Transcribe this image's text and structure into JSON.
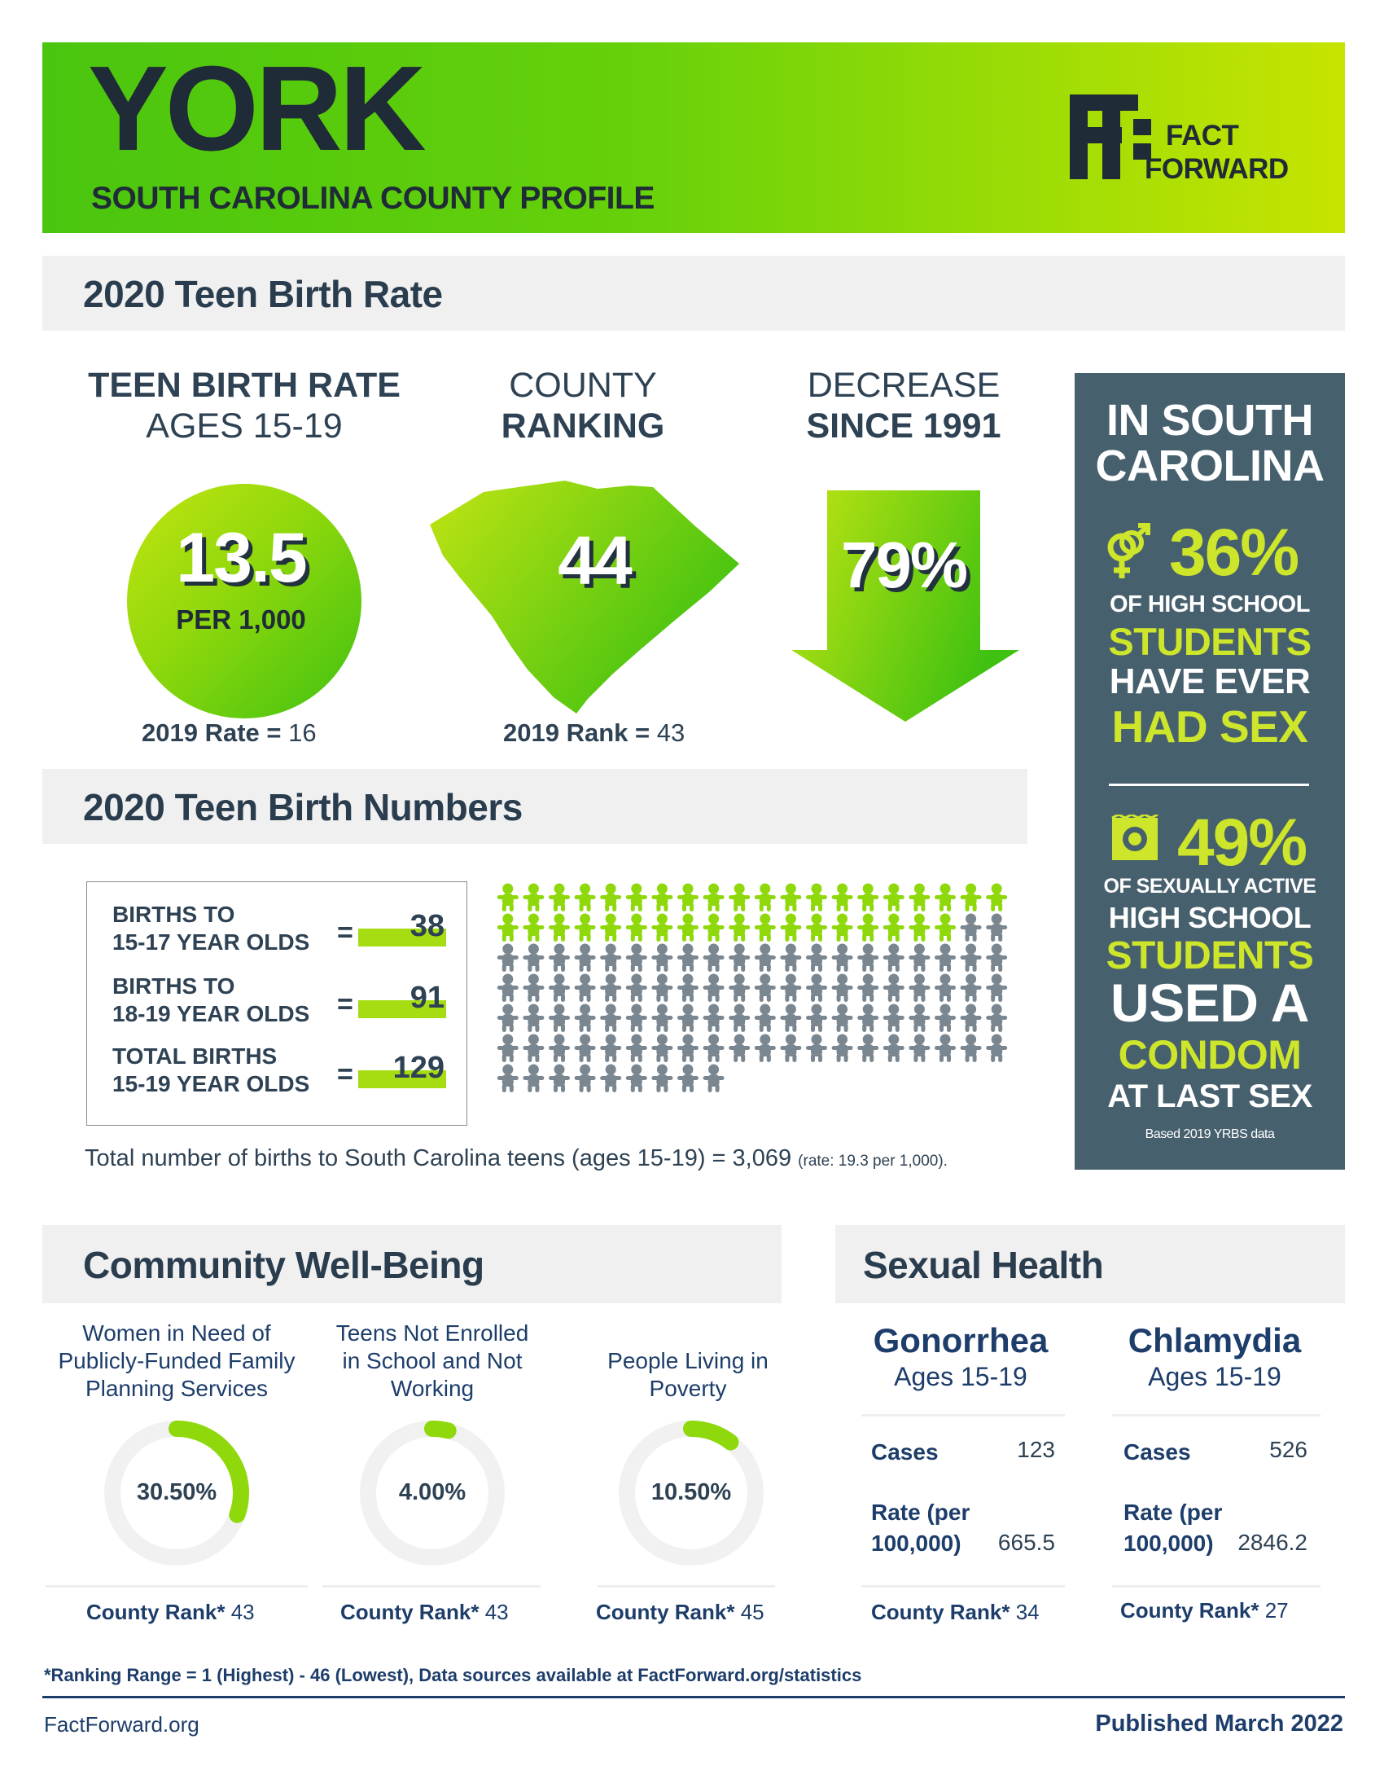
{
  "header": {
    "county": "YORK",
    "subtitle": "SOUTH CAROLINA COUNTY PROFILE",
    "logo_line1": "FACT",
    "logo_line2": "FORWARD"
  },
  "teen_birth_rate": {
    "section_title": "2020 Teen Birth Rate",
    "rate": {
      "heading_line1": "TEEN BIRTH RATE",
      "heading_line2": "AGES 15-19",
      "value": "13.5",
      "unit": "PER 1,000",
      "prior_label": "2019 Rate =",
      "prior_value": "16"
    },
    "ranking": {
      "heading_line1": "COUNTY",
      "heading_line2": "RANKING",
      "value": "44",
      "prior_label": "2019 Rank =",
      "prior_value": "43"
    },
    "decrease": {
      "heading_line1": "DECREASE",
      "heading_line2": "SINCE 1991",
      "value": "79%"
    }
  },
  "side_panel": {
    "title_line1": "IN SOUTH",
    "title_line2": "CAROLINA",
    "stat1": {
      "value": "36%",
      "line1": "OF HIGH SCHOOL",
      "line2": "STUDENTS",
      "line3": "HAVE EVER",
      "line4": "HAD SEX"
    },
    "stat2": {
      "value": "49%",
      "line1": "OF SEXUALLY ACTIVE",
      "line2": "HIGH SCHOOL",
      "line3": "STUDENTS",
      "line4": "USED A",
      "line5": "CONDOM",
      "line6": "AT LAST SEX"
    },
    "source": "Based 2019 YRBS data",
    "colors": {
      "background": "#47606e",
      "accent": "#cde52a"
    }
  },
  "teen_birth_numbers": {
    "section_title": "2020 Teen Birth Numbers",
    "rows": [
      {
        "line1": "BIRTHS TO",
        "line2": "15-17 YEAR OLDS",
        "value": "38"
      },
      {
        "line1": "BIRTHS TO",
        "line2": "18-19 YEAR OLDS",
        "value": "91"
      },
      {
        "line1": "TOTAL BIRTHS",
        "line2": "15-19 YEAR OLDS",
        "value": "129"
      }
    ],
    "equals": "=",
    "pictogram": {
      "highlighted": 38,
      "total": 129,
      "colors": {
        "highlighted": "#8fd80c",
        "other": "#7b8790"
      }
    },
    "state_total_text": "Total number of births to South Carolina teens (ages 15-19) = 3,069",
    "state_rate_text": "(rate: 19.3 per 1,000)."
  },
  "community": {
    "section_title": "Community Well-Being",
    "items": [
      {
        "line1": "Women in Need of",
        "line2": "Publicly-Funded Family",
        "line3": "Planning Services",
        "value": "30.50%",
        "fraction": 0.305,
        "rank_label": "County Rank*",
        "rank": "43"
      },
      {
        "line1": "Teens Not Enrolled",
        "line2": "in School and Not",
        "line3": "Working",
        "value": "4.00%",
        "fraction": 0.04,
        "rank_label": "County Rank*",
        "rank": "43"
      },
      {
        "line1": "People Living in",
        "line2": "Poverty",
        "line3": "",
        "value": "10.50%",
        "fraction": 0.105,
        "rank_label": "County Rank*",
        "rank": "45"
      }
    ]
  },
  "sexual_health": {
    "section_title": "Sexual Health",
    "diseases": [
      {
        "name": "Gonorrhea",
        "ages": "Ages 15-19",
        "cases_label": "Cases",
        "cases": "123",
        "rate_label_1": "Rate (per",
        "rate_label_2": "100,000)",
        "rate": "665.5",
        "rank_label": "County Rank*",
        "rank": "34"
      },
      {
        "name": "Chlamydia",
        "ages": "Ages 15-19",
        "cases_label": "Cases",
        "cases": "526",
        "rate_label_1": "Rate (per",
        "rate_label_2": "100,000)",
        "rate": "2846.2",
        "rank_label": "County Rank*",
        "rank": "27"
      }
    ]
  },
  "footer": {
    "note": "*Ranking Range = 1 (Highest) - 46 (Lowest), Data sources available at FactForward.org/statistics",
    "site": "FactForward.org",
    "published": "Published March 2022"
  }
}
